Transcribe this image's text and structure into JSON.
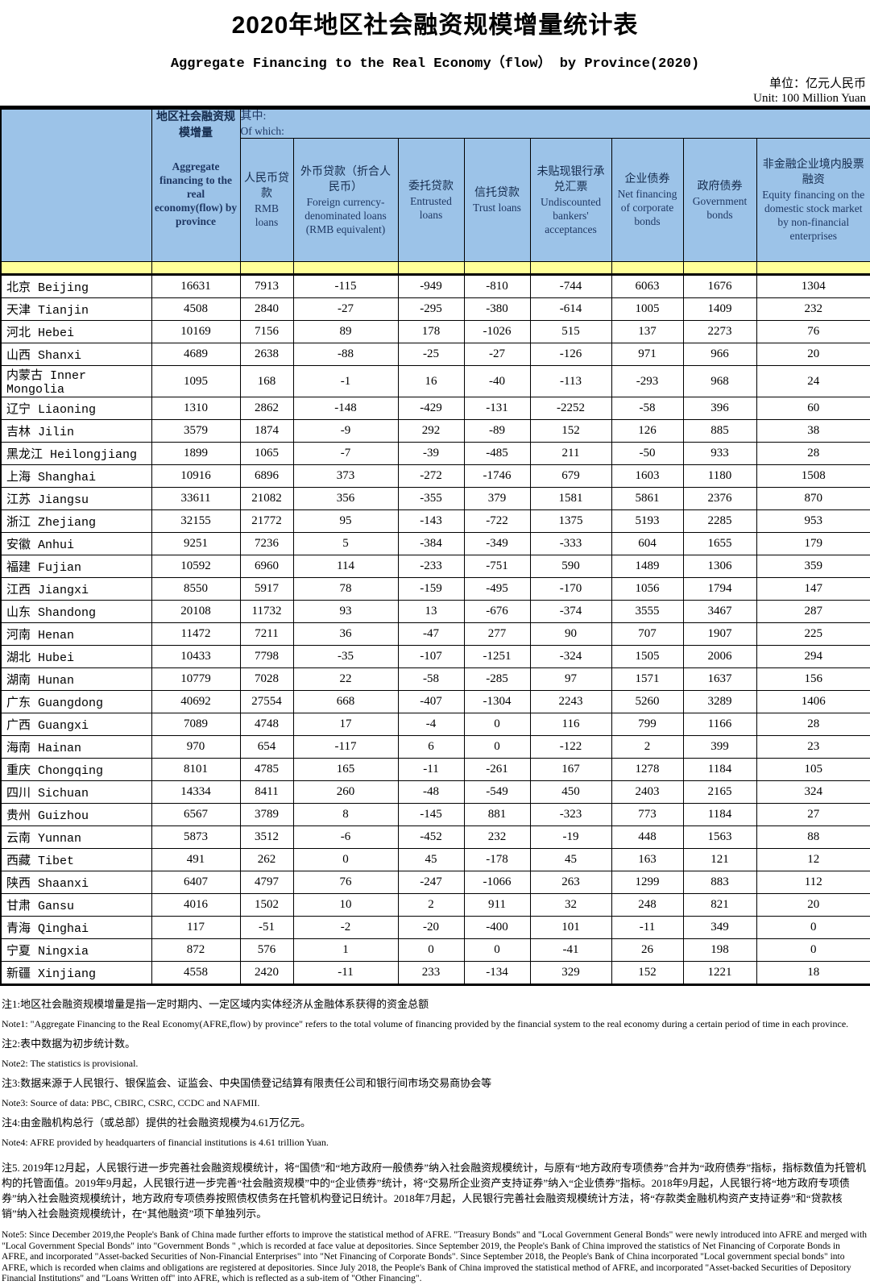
{
  "title": "2020年地区社会融资规模增量统计表",
  "subtitle": "Aggregate Financing to the Real Economy（flow） by Province(2020)",
  "unit_cn": "单位：亿元人民币",
  "unit_en": "Unit: 100 Million Yuan",
  "colors": {
    "header_bg": "#9cc3e8",
    "band_yellow": "#ffff99",
    "header_text": "#1f3864",
    "border": "#000000"
  },
  "table": {
    "group_header": {
      "cn": "其中:",
      "en": "Of which:"
    },
    "columns": [
      {
        "cn": "地区社会融资规模增量",
        "en": "Aggregate financing to the real economy(flow) by province"
      },
      {
        "cn": "人民币贷款",
        "en": "RMB loans"
      },
      {
        "cn": "外币贷款（折合人民币）",
        "en": "Foreign currency-denominated loans (RMB equivalent)"
      },
      {
        "cn": "委托贷款",
        "en": "Entrusted loans"
      },
      {
        "cn": "信托贷款",
        "en": "Trust loans"
      },
      {
        "cn": "未贴现银行承兑汇票",
        "en": "Undiscounted bankers' acceptances"
      },
      {
        "cn": "企业债券",
        "en": "Net financing of corporate bonds"
      },
      {
        "cn": "政府债券",
        "en": "Government bonds"
      },
      {
        "cn": "非金融企业境内股票融资",
        "en": "Equity financing on the domestic stock market by non-financial enterprises"
      }
    ],
    "rows": [
      {
        "province": "北京 Beijing",
        "values": [
          16631,
          7913,
          -115,
          -949,
          -810,
          -744,
          6063,
          1676,
          1304
        ]
      },
      {
        "province": "天津 Tianjin",
        "values": [
          4508,
          2840,
          -27,
          -295,
          -380,
          -614,
          1005,
          1409,
          232
        ]
      },
      {
        "province": "河北 Hebei",
        "values": [
          10169,
          7156,
          89,
          178,
          -1026,
          515,
          137,
          2273,
          76
        ]
      },
      {
        "province": "山西 Shanxi",
        "values": [
          4689,
          2638,
          -88,
          -25,
          -27,
          -126,
          971,
          966,
          20
        ]
      },
      {
        "province": "内蒙古 Inner Mongolia",
        "values": [
          1095,
          168,
          -1,
          16,
          -40,
          -113,
          -293,
          968,
          24
        ]
      },
      {
        "province": "辽宁 Liaoning",
        "values": [
          1310,
          2862,
          -148,
          -429,
          -131,
          -2252,
          -58,
          396,
          60
        ]
      },
      {
        "province": "吉林 Jilin",
        "values": [
          3579,
          1874,
          -9,
          292,
          -89,
          152,
          126,
          885,
          38
        ]
      },
      {
        "province": "黑龙江 Heilongjiang",
        "values": [
          1899,
          1065,
          -7,
          -39,
          -485,
          211,
          -50,
          933,
          28
        ]
      },
      {
        "province": "上海 Shanghai",
        "values": [
          10916,
          6896,
          373,
          -272,
          -1746,
          679,
          1603,
          1180,
          1508
        ]
      },
      {
        "province": "江苏 Jiangsu",
        "values": [
          33611,
          21082,
          356,
          -355,
          379,
          1581,
          5861,
          2376,
          870
        ]
      },
      {
        "province": "浙江 Zhejiang",
        "values": [
          32155,
          21772,
          95,
          -143,
          -722,
          1375,
          5193,
          2285,
          953
        ]
      },
      {
        "province": "安徽 Anhui",
        "values": [
          9251,
          7236,
          5,
          -384,
          -349,
          -333,
          604,
          1655,
          179
        ]
      },
      {
        "province": "福建 Fujian",
        "values": [
          10592,
          6960,
          114,
          -233,
          -751,
          590,
          1489,
          1306,
          359
        ]
      },
      {
        "province": "江西 Jiangxi",
        "values": [
          8550,
          5917,
          78,
          -159,
          -495,
          -170,
          1056,
          1794,
          147
        ]
      },
      {
        "province": "山东 Shandong",
        "values": [
          20108,
          11732,
          93,
          13,
          -676,
          -374,
          3555,
          3467,
          287
        ]
      },
      {
        "province": "河南 Henan",
        "values": [
          11472,
          7211,
          36,
          -47,
          277,
          90,
          707,
          1907,
          225
        ]
      },
      {
        "province": "湖北 Hubei",
        "values": [
          10433,
          7798,
          -35,
          -107,
          -1251,
          -324,
          1505,
          2006,
          294
        ]
      },
      {
        "province": "湖南 Hunan",
        "values": [
          10779,
          7028,
          22,
          -58,
          -285,
          97,
          1571,
          1637,
          156
        ]
      },
      {
        "province": "广东 Guangdong",
        "values": [
          40692,
          27554,
          668,
          -407,
          -1304,
          2243,
          5260,
          3289,
          1406
        ]
      },
      {
        "province": "广西 Guangxi",
        "values": [
          7089,
          4748,
          17,
          -4,
          0,
          116,
          799,
          1166,
          28
        ]
      },
      {
        "province": "海南 Hainan",
        "values": [
          970,
          654,
          -117,
          6,
          0,
          -122,
          2,
          399,
          23
        ]
      },
      {
        "province": "重庆 Chongqing",
        "values": [
          8101,
          4785,
          165,
          -11,
          -261,
          167,
          1278,
          1184,
          105
        ]
      },
      {
        "province": "四川 Sichuan",
        "values": [
          14334,
          8411,
          260,
          -48,
          -549,
          450,
          2403,
          2165,
          324
        ]
      },
      {
        "province": "贵州 Guizhou",
        "values": [
          6567,
          3789,
          8,
          -145,
          881,
          -323,
          773,
          1184,
          27
        ]
      },
      {
        "province": "云南 Yunnan",
        "values": [
          5873,
          3512,
          -6,
          -452,
          232,
          -19,
          448,
          1563,
          88
        ]
      },
      {
        "province": "西藏 Tibet",
        "values": [
          491,
          262,
          0,
          45,
          -178,
          45,
          163,
          121,
          12
        ]
      },
      {
        "province": "陕西 Shaanxi",
        "values": [
          6407,
          4797,
          76,
          -247,
          -1066,
          263,
          1299,
          883,
          112
        ]
      },
      {
        "province": "甘肃 Gansu",
        "values": [
          4016,
          1502,
          10,
          2,
          911,
          32,
          248,
          821,
          20
        ]
      },
      {
        "province": "青海 Qinghai",
        "values": [
          117,
          -51,
          -2,
          -20,
          -400,
          101,
          -11,
          349,
          0
        ]
      },
      {
        "province": "宁夏 Ningxia",
        "values": [
          872,
          576,
          1,
          0,
          0,
          -41,
          26,
          198,
          0
        ]
      },
      {
        "province": "新疆 Xinjiang",
        "values": [
          4558,
          2420,
          -11,
          233,
          -134,
          329,
          152,
          1221,
          18
        ]
      }
    ]
  },
  "notes": [
    "注1:地区社会融资规模增量是指一定时期内、一定区域内实体经济从金融体系获得的资金总额",
    "Note1: \"Aggregate Financing to the Real Economy(AFRE,flow) by province\" refers to the total volume of financing provided by the financial system to the real economy during a certain period of time in each province.",
    "注2:表中数据为初步统计数。",
    "Note2: The statistics is provisional.",
    "注3:数据来源于人民银行、银保监会、证监会、中央国债登记结算有限责任公司和银行间市场交易商协会等",
    "Note3: Source of data: PBC, CBIRC, CSRC, CCDC and NAFMII.",
    "注4:由金融机构总行（或总部）提供的社会融资规模为4.61万亿元。",
    "Note4: AFRE provided by headquarters of financial institutions is 4.61 trillion Yuan.",
    "注5. 2019年12月起，人民银行进一步完善社会融资规模统计，将“国债”和“地方政府一般债券”纳入社会融资规模统计，与原有“地方政府专项债券”合并为“政府债券”指标，指标数值为托管机构的托管面值。2019年9月起，人民银行进一步完善“社会融资规模”中的“企业债券”统计，将“交易所企业资产支持证券”纳入“企业债券”指标。2018年9月起，人民银行将“地方政府专项债券”纳入社会融资规模统计，地方政府专项债券按照债权债务在托管机构登记日统计。2018年7月起，人民银行完善社会融资规模统计方法，将“存款类金融机构资产支持证券”和“贷款核销”纳入社会融资规模统计，在“其他融资”项下单独列示。",
    "Note5:  Since December 2019,the People's Bank of China made further efforts to improve the statistical method of AFRE. \"Treasury Bonds\" and \"Local Government General Bonds\" were newly introduced into AFRE and merged with  \"Local Government Special Bonds\" into \"Government Bonds \" ,which is recorded at face value at depositories. Since September 2019, the People's Bank of China improved the statistics of Net Financing of Corporate Bonds in AFRE, and incorporated \"Asset-backed Securities of Non-Financial Enterprises\" into \"Net Financing of Corporate Bonds\".  Since September 2018, the People's Bank of China incorporated \"Local government special bonds\" into AFRE, which is recorded when claims and obligations are registered at depositories. Since July 2018, the People's Bank of China improved the statistical method of AFRE, and incorporated \"Asset-backed Securities of Depository Financial Institutions\" and \"Loans Written off\" into AFRE, which is reflected as a sub-item of \"Other Financing\"."
  ]
}
